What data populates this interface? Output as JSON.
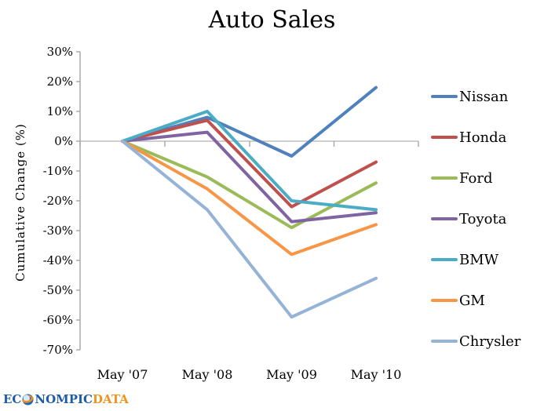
{
  "chart_data": {
    "type": "line",
    "title": "Auto Sales",
    "ylabel": "Cumulative Change (%)",
    "categories": [
      "May '07",
      "May '08",
      "May '09",
      "May '10"
    ],
    "y_ticks": [
      "30%",
      "20%",
      "10%",
      "0%",
      "-10%",
      "-20%",
      "-30%",
      "-40%",
      "-50%",
      "-60%",
      "-70%"
    ],
    "ylim": [
      -70,
      30
    ],
    "y_step_pct": 10,
    "grid": false,
    "legend_position": "right",
    "axis_color": "#A6A6A6",
    "series": [
      {
        "name": "Nissan",
        "color": "#4F81BD",
        "values": [
          0,
          8,
          -5,
          18
        ]
      },
      {
        "name": "Honda",
        "color": "#C0504D",
        "values": [
          0,
          7,
          -22,
          -7
        ]
      },
      {
        "name": "Ford",
        "color": "#9BBB59",
        "values": [
          0,
          -12,
          -29,
          -14
        ]
      },
      {
        "name": "Toyota",
        "color": "#8064A2",
        "values": [
          0,
          3,
          -27,
          -24
        ]
      },
      {
        "name": "BMW",
        "color": "#4BACC6",
        "values": [
          0,
          10,
          -20,
          -23
        ]
      },
      {
        "name": "GM",
        "color": "#F79646",
        "values": [
          0,
          -16,
          -38,
          -28
        ]
      },
      {
        "name": "Chrysler",
        "color": "#95B3D7",
        "values": [
          0,
          -23,
          -59,
          -46
        ]
      }
    ]
  },
  "logo": {
    "text_left": "EC",
    "text_mid": "NOMPIC",
    "text_right": "DATA",
    "blue": "#1C5BA8",
    "orange": "#F0921E"
  }
}
